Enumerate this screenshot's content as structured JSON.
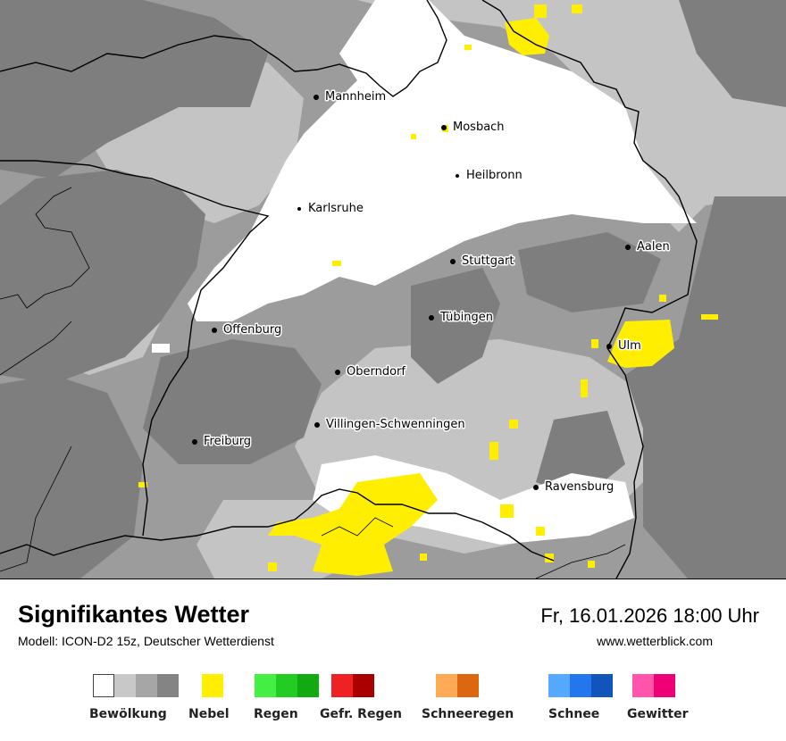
{
  "title": "Signifikantes Wetter",
  "model": "Modell: ICON-D2 15z, Deutscher Wetterdienst",
  "datetime": "Fr, 16.01.2026 18:00 Uhr",
  "website": "www.wetterblick.com",
  "cities": [
    {
      "name": "Mannheim"
    },
    {
      "name": "Mosbach"
    },
    {
      "name": "Heilbronn"
    },
    {
      "name": "Karlsruhe"
    },
    {
      "name": "Aalen"
    },
    {
      "name": "Stuttgart"
    },
    {
      "name": "Tübingen"
    },
    {
      "name": "Offenburg"
    },
    {
      "name": "Ulm"
    },
    {
      "name": "Oberndorf"
    },
    {
      "name": "Villingen-Schwenningen"
    },
    {
      "name": "Freiburg"
    },
    {
      "name": "Ravensburg"
    }
  ],
  "legend": [
    {
      "label": "Bewölkung",
      "colors": [
        "#ffffff",
        "#c8c8c8",
        "#a6a6a6",
        "#848484"
      ]
    },
    {
      "label": "Nebel",
      "colors": [
        "#ffee00"
      ]
    },
    {
      "label": "Regen",
      "colors": [
        "#44ee44",
        "#22cc22",
        "#11aa11"
      ]
    },
    {
      "label": "Gefr. Regen",
      "colors": [
        "#ee2222",
        "#aa0000"
      ]
    },
    {
      "label": "Schneeregen",
      "colors": [
        "#ffaa55",
        "#dd6611"
      ]
    },
    {
      "label": "Schnee",
      "colors": [
        "#55aaff",
        "#2277ee",
        "#1155bb"
      ]
    },
    {
      "label": "Gewitter",
      "colors": [
        "#ff55aa",
        "#ee0077"
      ]
    }
  ]
}
